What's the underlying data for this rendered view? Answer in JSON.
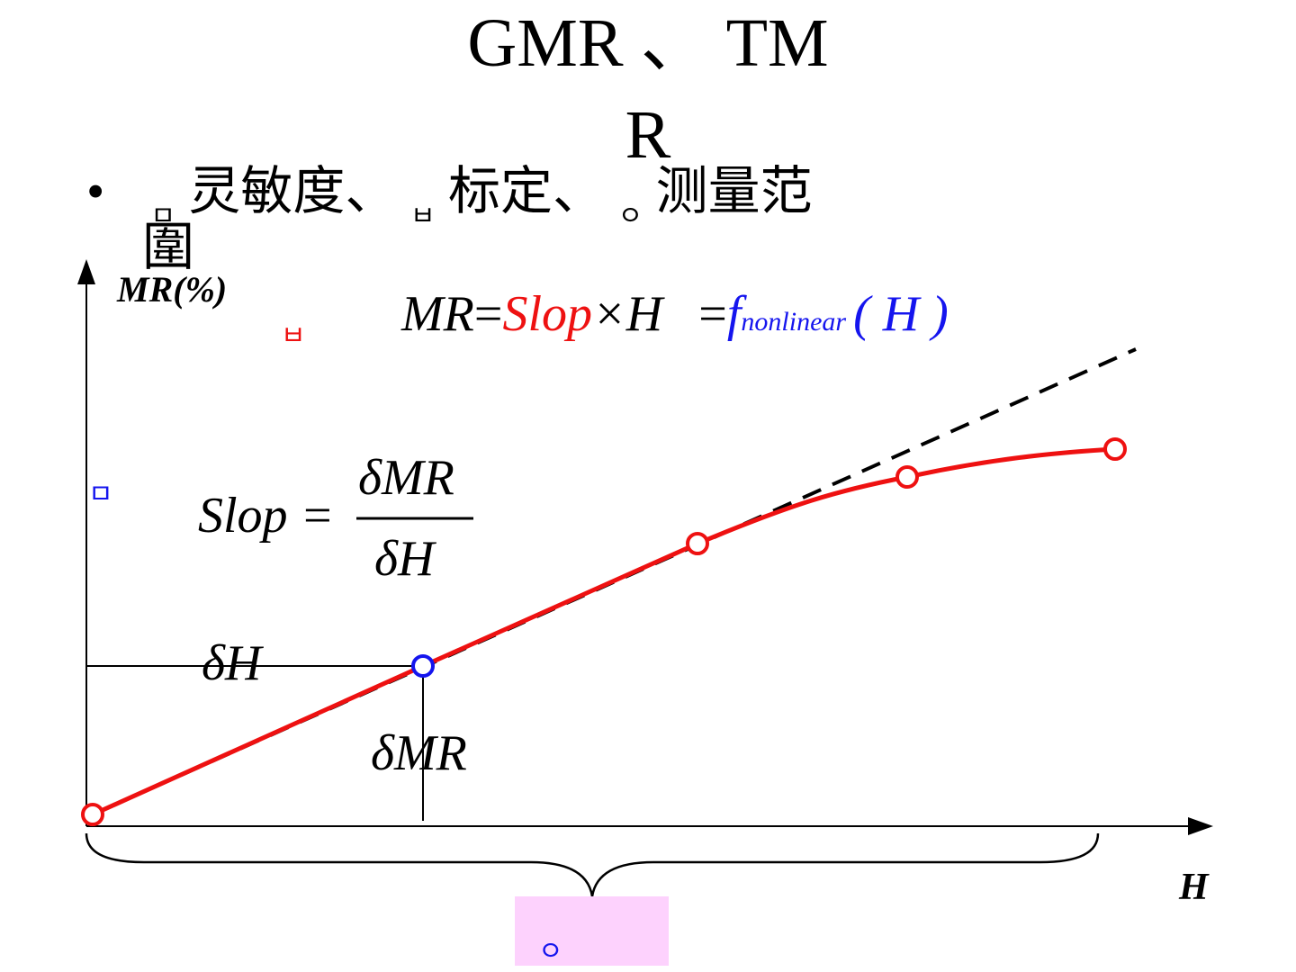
{
  "title": {
    "line1": "GMR 、 TM",
    "line2": "R"
  },
  "bullet": {
    "marker": "•",
    "glyph_a": "ㅁ",
    "text_a": "灵敏度、",
    "glyph_b": "ㅂ",
    "text_b": "标定、",
    "glyph_c": "ㅇ",
    "text_c": "测量范",
    "cont": "圍"
  },
  "axes": {
    "y_label": "MR(%)",
    "x_label": "H"
  },
  "equation_main": {
    "lhs": "MR",
    "eq1": "=",
    "slop": "Slop",
    "times": "×H",
    "eq2": "=",
    "f": "f",
    "sub": "nonlinear",
    "arg": "( H )"
  },
  "equation_slope": {
    "lhs": "Slop =",
    "num": "δMR",
    "den": "δH"
  },
  "delta_h_label": "δH",
  "delta_mr_label": "δMR",
  "markers": {
    "red_glyph": "ㅂ",
    "blue_glyph": "ㅁ",
    "range_glyph": "ㅇ"
  },
  "colors": {
    "curve": "#ee1111",
    "linear": "#000000",
    "blue": "#1515ee",
    "pink": "#fdd2fd",
    "axis": "#000000"
  }
}
